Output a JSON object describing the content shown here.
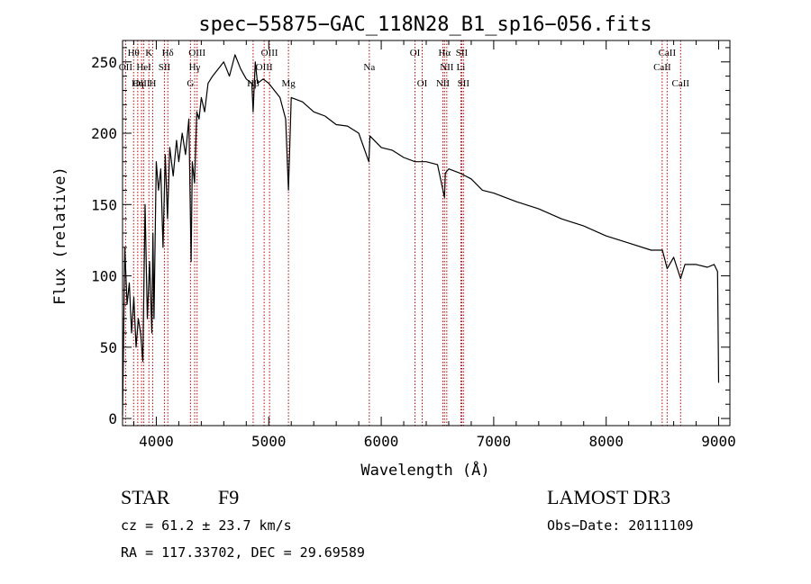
{
  "chart_data": {
    "type": "line",
    "title": "spec−55875−GAC_118N28_B1_sp16−056.fits",
    "xlabel": "Wavelength (Å)",
    "ylabel": "Flux (relative)",
    "xlim": [
      3700,
      9100
    ],
    "ylim": [
      -5,
      265
    ],
    "xticks": [
      4000,
      5000,
      6000,
      7000,
      8000,
      9000
    ],
    "yticks": [
      0,
      50,
      100,
      150,
      200,
      250
    ],
    "series": [
      {
        "name": "spectrum",
        "x": [
          3700,
          3720,
          3740,
          3760,
          3780,
          3800,
          3820,
          3840,
          3860,
          3880,
          3900,
          3920,
          3940,
          3960,
          3970,
          3980,
          4000,
          4020,
          4040,
          4060,
          4080,
          4100,
          4120,
          4150,
          4180,
          4200,
          4230,
          4260,
          4290,
          4310,
          4320,
          4340,
          4360,
          4380,
          4400,
          4430,
          4460,
          4500,
          4550,
          4600,
          4650,
          4700,
          4750,
          4800,
          4850,
          4861,
          4880,
          4900,
          4950,
          5000,
          5050,
          5100,
          5150,
          5175,
          5200,
          5300,
          5400,
          5500,
          5600,
          5700,
          5800,
          5890,
          5900,
          6000,
          6100,
          6200,
          6300,
          6400,
          6500,
          6563,
          6570,
          6600,
          6700,
          6800,
          6900,
          7000,
          7200,
          7400,
          7600,
          7800,
          8000,
          8200,
          8400,
          8500,
          8542,
          8600,
          8662,
          8700,
          8800,
          8900,
          8960,
          8990,
          9000
        ],
        "y": [
          2,
          120,
          80,
          95,
          60,
          85,
          50,
          70,
          60,
          40,
          150,
          70,
          110,
          60,
          130,
          70,
          180,
          160,
          175,
          120,
          185,
          140,
          190,
          170,
          195,
          180,
          200,
          185,
          210,
          110,
          180,
          165,
          215,
          210,
          225,
          215,
          235,
          240,
          245,
          250,
          240,
          255,
          245,
          238,
          235,
          215,
          250,
          235,
          238,
          235,
          230,
          225,
          210,
          160,
          225,
          222,
          215,
          212,
          206,
          205,
          200,
          180,
          198,
          190,
          188,
          183,
          180,
          180,
          178,
          155,
          172,
          175,
          172,
          168,
          160,
          158,
          152,
          147,
          140,
          135,
          128,
          123,
          118,
          118,
          105,
          113,
          98,
          108,
          108,
          106,
          108,
          103,
          25
        ]
      }
    ],
    "lines": [
      {
        "name": "OII",
        "wavelength": 3727
      },
      {
        "name": "Hθ",
        "wavelength": 3798
      },
      {
        "name": "OIII",
        "wavelength": 3869
      },
      {
        "name": "HeI",
        "wavelength": 3889
      },
      {
        "name": "K",
        "wavelength": 3934
      },
      {
        "name": "Hη",
        "wavelength": 3835
      },
      {
        "name": "H",
        "wavelength": 3968
      },
      {
        "name": "SII",
        "wavelength": 4072
      },
      {
        "name": "Hδ",
        "wavelength": 4102
      },
      {
        "name": "G",
        "wavelength": 4304
      },
      {
        "name": "Hγ",
        "wavelength": 4341
      },
      {
        "name": "OIII",
        "wavelength": 4363
      },
      {
        "name": "Hβ",
        "wavelength": 4861
      },
      {
        "name": "OIII",
        "wavelength": 4959
      },
      {
        "name": "OIII",
        "wavelength": 5007
      },
      {
        "name": "Mg",
        "wavelength": 5175
      },
      {
        "name": "Na",
        "wavelength": 5894
      },
      {
        "name": "OI",
        "wavelength": 6300
      },
      {
        "name": "OI",
        "wavelength": 6364
      },
      {
        "name": "NII",
        "wavelength": 6548
      },
      {
        "name": "Hα",
        "wavelength": 6563
      },
      {
        "name": "NII",
        "wavelength": 6583
      },
      {
        "name": "Li",
        "wavelength": 6708
      },
      {
        "name": "SII",
        "wavelength": 6716
      },
      {
        "name": "SII",
        "wavelength": 6731
      },
      {
        "name": "CaII",
        "wavelength": 8498
      },
      {
        "name": "CaII",
        "wavelength": 8542
      },
      {
        "name": "CaII",
        "wavelength": 8662
      }
    ],
    "line_labels": [
      {
        "text": "Hθ",
        "wavelength": 3798,
        "row": 0
      },
      {
        "text": "K",
        "wavelength": 3934,
        "row": 0
      },
      {
        "text": "Hδ",
        "wavelength": 4102,
        "row": 0
      },
      {
        "text": "OIII",
        "wavelength": 4363,
        "row": 0
      },
      {
        "text": "OIII",
        "wavelength": 5007,
        "row": 0
      },
      {
        "text": "OI",
        "wavelength": 6300,
        "row": 0
      },
      {
        "text": "Hα",
        "wavelength": 6563,
        "row": 0
      },
      {
        "text": "SII",
        "wavelength": 6716,
        "row": 0
      },
      {
        "text": "CaII",
        "wavelength": 8542,
        "row": 0
      },
      {
        "text": "OII",
        "wavelength": 3727,
        "row": 1
      },
      {
        "text": "HeI",
        "wavelength": 3889,
        "row": 1
      },
      {
        "text": "SII",
        "wavelength": 4072,
        "row": 1
      },
      {
        "text": "Hγ",
        "wavelength": 4341,
        "row": 1
      },
      {
        "text": "OIII",
        "wavelength": 4959,
        "row": 1
      },
      {
        "text": "Na",
        "wavelength": 5894,
        "row": 1
      },
      {
        "text": "NII",
        "wavelength": 6583,
        "row": 1
      },
      {
        "text": "Li",
        "wavelength": 6708,
        "row": 1
      },
      {
        "text": "CaII",
        "wavelength": 8498,
        "row": 1
      },
      {
        "text": "OIII",
        "wavelength": 3869,
        "row": 2
      },
      {
        "text": "Hη",
        "wavelength": 3835,
        "row": 2
      },
      {
        "text": "H",
        "wavelength": 3968,
        "row": 2
      },
      {
        "text": "G",
        "wavelength": 4304,
        "row": 2
      },
      {
        "text": "Hβ",
        "wavelength": 4861,
        "row": 2
      },
      {
        "text": "Mg",
        "wavelength": 5175,
        "row": 2
      },
      {
        "text": "OI",
        "wavelength": 6364,
        "row": 2
      },
      {
        "text": "NII",
        "wavelength": 6548,
        "row": 2
      },
      {
        "text": "SII",
        "wavelength": 6731,
        "row": 2
      },
      {
        "text": "CaII",
        "wavelength": 8662,
        "row": 2
      }
    ]
  },
  "info": {
    "object_class": "STAR",
    "subclass": "F9",
    "survey": "LAMOST DR3",
    "cz": "cz = 61.2 ± 23.7 km/s",
    "obs_date": "Obs−Date: 20111109",
    "coords": "RA = 117.33702, DEC =  29.69589"
  },
  "colors": {
    "spectrum": "#000000",
    "lines": "#c00000",
    "axis": "#000000"
  }
}
